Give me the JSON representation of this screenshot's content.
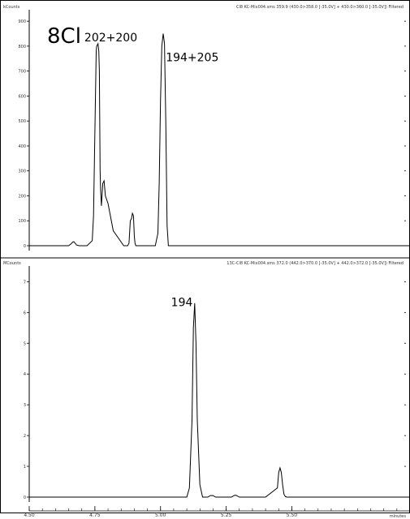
{
  "chart_data": [
    {
      "type": "line",
      "panel": "top",
      "y_unit_label": "kCounts",
      "header": "Cl8 KC-Mix004.sms 359.9 (430.0>358.0 [-35.0V] + 430.0>360.0 [-35.0V]) Filtered",
      "label": "8Cl",
      "annotations": [
        {
          "text": "202+200",
          "x": 4.71,
          "y": 820
        },
        {
          "text": "194+205",
          "x": 5.02,
          "y": 740
        }
      ],
      "xlim": [
        4.5,
        5.95
      ],
      "ylim": [
        0,
        920
      ],
      "y_ticks": [
        0,
        100,
        200,
        300,
        400,
        500,
        600,
        700,
        800,
        900
      ],
      "y_tick_labels": [
        "0",
        "100",
        "200",
        "300",
        "400",
        "500",
        "600",
        "700",
        "800",
        "900"
      ],
      "grid": false,
      "series": [
        {
          "x": [
            4.5,
            4.65,
            4.66,
            4.665,
            4.67,
            4.675,
            4.68,
            4.69,
            4.72,
            4.74,
            4.745,
            4.75,
            4.755,
            4.757,
            4.762,
            4.765,
            4.767,
            4.77,
            4.772,
            4.775,
            4.78,
            4.785,
            4.79,
            4.8,
            4.82,
            4.86,
            4.875,
            4.88,
            4.885,
            4.89,
            4.893,
            4.897,
            4.9,
            4.903,
            4.906,
            4.91,
            4.92,
            4.95,
            4.98,
            4.99,
            4.995,
            5.0,
            5.005,
            5.01,
            5.015,
            5.02,
            5.025,
            5.03,
            5.05,
            5.1,
            5.2,
            5.4,
            5.6,
            5.8,
            5.95
          ],
          "y": [
            0,
            0,
            8,
            15,
            16,
            10,
            3,
            0,
            0,
            20,
            120,
            460,
            780,
            800,
            810,
            780,
            700,
            300,
            220,
            160,
            250,
            260,
            200,
            170,
            60,
            0,
            0,
            10,
            100,
            110,
            130,
            120,
            40,
            10,
            0,
            0,
            0,
            0,
            0,
            50,
            250,
            580,
            800,
            850,
            810,
            500,
            80,
            0,
            0,
            0,
            0,
            0,
            0,
            0,
            0
          ]
        }
      ]
    },
    {
      "type": "line",
      "panel": "bottom",
      "y_unit_label": "MCounts",
      "header": "13C-Cl8 KC-Mix004.sms 372.0 (442.0>370.0 [-35.0V] + 442.0>372.0 [-35.0V]) Filtered",
      "label": "",
      "annotations": [
        {
          "text": "194",
          "x": 5.04,
          "y": 6.2
        }
      ],
      "xlim": [
        4.5,
        5.95
      ],
      "ylim": [
        0,
        7.3
      ],
      "y_ticks": [
        0,
        1,
        2,
        3,
        4,
        5,
        6,
        7
      ],
      "y_tick_labels": [
        "0",
        "1",
        "2",
        "3",
        "4",
        "5",
        "6",
        "7"
      ],
      "x_ticks": [
        4.5,
        4.75,
        5.0,
        5.25,
        5.5
      ],
      "x_tick_labels": [
        "4.50",
        "4.75",
        "5.00",
        "5.25",
        "5.50"
      ],
      "x_unit_label": "minutes",
      "grid": false,
      "series": [
        {
          "x": [
            4.5,
            5.0,
            5.1,
            5.11,
            5.12,
            5.125,
            5.13,
            5.135,
            5.14,
            5.15,
            5.16,
            5.18,
            5.19,
            5.2,
            5.21,
            5.27,
            5.28,
            5.285,
            5.29,
            5.3,
            5.4,
            5.445,
            5.45,
            5.455,
            5.46,
            5.465,
            5.47,
            5.475,
            5.48,
            5.49,
            5.6,
            5.8,
            5.95
          ],
          "y": [
            0,
            0,
            0,
            0.3,
            2.5,
            5.5,
            6.3,
            5.0,
            2.5,
            0.4,
            0,
            0,
            0.05,
            0.05,
            0,
            0,
            0.05,
            0.06,
            0.05,
            0,
            0,
            0.3,
            0.8,
            0.95,
            0.8,
            0.4,
            0.1,
            0.02,
            0,
            0,
            0,
            0,
            0
          ]
        }
      ]
    }
  ]
}
